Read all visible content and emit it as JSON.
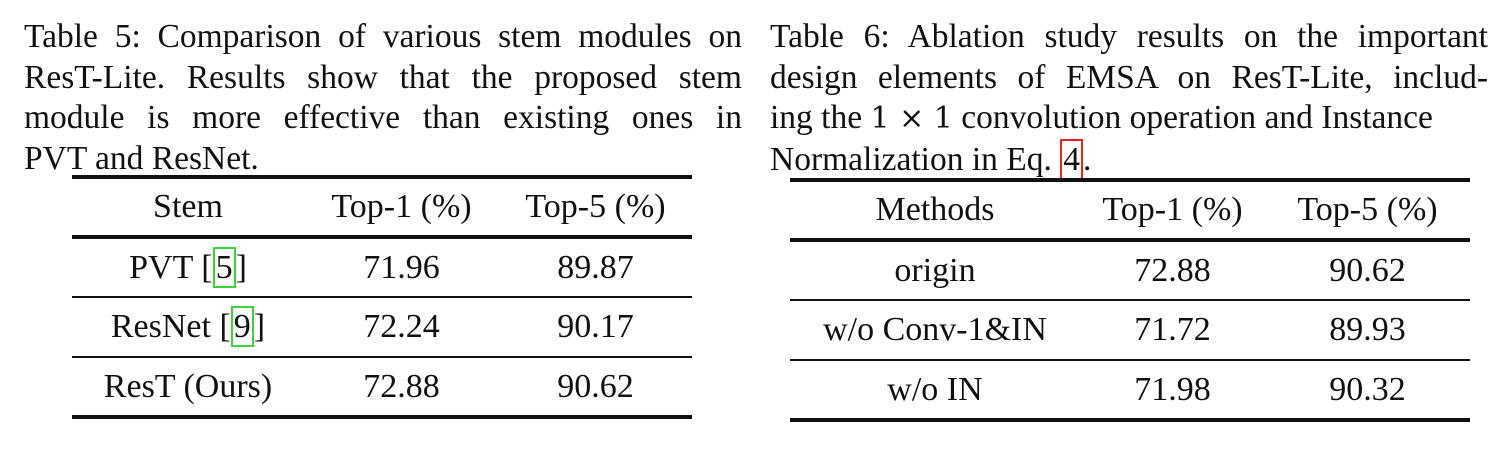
{
  "table5": {
    "caption_lines": [
      "Table 5: Comparison of various stem modules on",
      "ResT-Lite. Results show that the proposed stem",
      "module is more effective than existing ones in",
      "PVT and ResNet."
    ],
    "headers": [
      "Stem",
      "Top-1 (%)",
      "Top-5 (%)"
    ],
    "rows": [
      {
        "name": "PVT [",
        "ref": "5",
        "close": "]",
        "top1": "71.96",
        "top5": "89.87"
      },
      {
        "name": "ResNet [",
        "ref": "9",
        "close": "]",
        "top1": "72.24",
        "top5": "90.17"
      },
      {
        "name": "ResT (Ours)",
        "ref": "",
        "close": "",
        "top1": "72.88",
        "top5": "90.62"
      }
    ]
  },
  "table6": {
    "caption_lines": [
      "Table 6: Ablation study results on the important",
      "design elements of EMSA on ResT-Lite, includ-",
      "ing the ",
      "Normalization in Eq. "
    ],
    "math_1x1": "1 × 1",
    "line3_tail": " convolution operation and Instance",
    "eq_ref": "4",
    "eq_tail": ".",
    "headers": [
      "Methods",
      "Top-1 (%)",
      "Top-5 (%)"
    ],
    "rows": [
      {
        "name": "origin",
        "top1": "72.88",
        "top5": "90.62"
      },
      {
        "name": "w/o Conv-1&IN",
        "top1": "71.72",
        "top5": "89.93"
      },
      {
        "name": "w/o IN",
        "top1": "71.98",
        "top5": "90.32"
      }
    ]
  },
  "colors": {
    "citation_box": "#3bd23b",
    "equation_box": "#ee2222"
  }
}
